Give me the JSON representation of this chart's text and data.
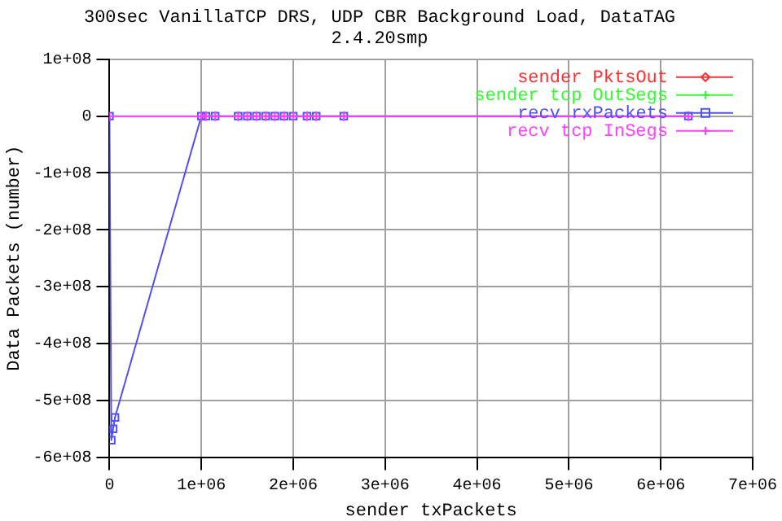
{
  "chart_data": {
    "type": "line",
    "title": "300sec VanillaTCP DRS, UDP CBR Background Load, DataTAG",
    "subtitle": "2.4.20smp",
    "xlabel": "sender txPackets",
    "ylabel": "Data Packets (number)",
    "xlim": [
      0,
      7000000
    ],
    "xticks": [
      0,
      {
        "value": 1000000,
        "label": "1e+06"
      },
      {
        "value": 2000000,
        "label": "2e+06"
      },
      {
        "value": 3000000,
        "label": "3e+06"
      },
      {
        "value": 4000000,
        "label": "4e+06"
      },
      {
        "value": 5000000,
        "label": "5e+06"
      },
      {
        "value": 6000000,
        "label": "6e+06"
      },
      {
        "value": 7000000,
        "label": "7e+06"
      }
    ],
    "ylim": [
      -600000000,
      100000000
    ],
    "yticks": [
      {
        "value": -600000000,
        "label": "-6e+08"
      },
      {
        "value": -500000000,
        "label": "-5e+08"
      },
      {
        "value": -400000000,
        "label": "-4e+08"
      },
      {
        "value": -300000000,
        "label": "-3e+08"
      },
      {
        "value": -200000000,
        "label": "-2e+08"
      },
      {
        "value": -100000000,
        "label": "-1e+08"
      },
      0,
      {
        "value": 100000000,
        "label": "1e+08"
      }
    ],
    "grid": true,
    "legend": "top right",
    "line_style": "solid",
    "series": [
      {
        "name": "sender PktsOut",
        "color": "#ff3030",
        "marker": "diamond"
      },
      {
        "name": "sender tcp OutSegs",
        "color": "#30ff30",
        "marker": "cross"
      },
      {
        "name": "recv rxPackets",
        "color": "#5050ff",
        "marker": "square",
        "x": [
          0,
          20000,
          40000,
          60000,
          1000000,
          1050000,
          1150000,
          1400000,
          1500000,
          1600000,
          1700000,
          1800000,
          1900000,
          2000000,
          2150000,
          2250000,
          2550000,
          6300000
        ],
        "values": [
          0,
          -570000000,
          -550000000,
          -530000000,
          0,
          0,
          0,
          0,
          0,
          0,
          0,
          0,
          0,
          0,
          0,
          0,
          0,
          0
        ]
      },
      {
        "name": "recv tcp InSegs",
        "color": "#ff40ff",
        "marker": "cross",
        "x": [
          0,
          1000000,
          1050000,
          1150000,
          1400000,
          1500000,
          1600000,
          1700000,
          1800000,
          1900000,
          2000000,
          2150000,
          2250000,
          2550000,
          6300000
        ],
        "values": [
          0,
          0,
          0,
          0,
          0,
          0,
          0,
          0,
          0,
          0,
          0,
          0,
          0,
          0,
          0
        ]
      }
    ]
  }
}
